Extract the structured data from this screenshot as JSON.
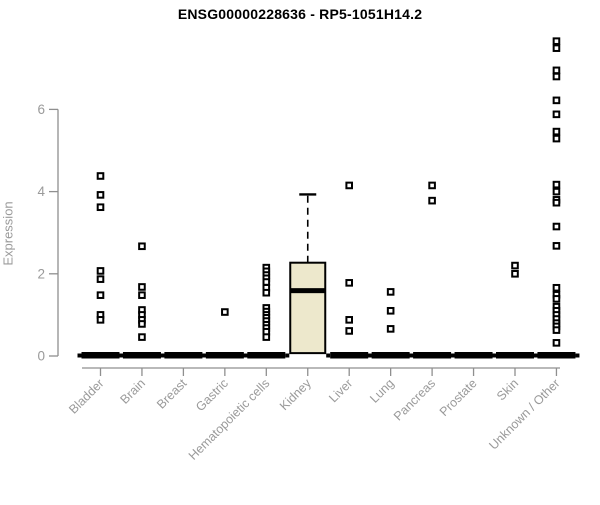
{
  "header": {
    "title": "ENSG00000228636 - RP5-1051H14.2"
  },
  "colors": {
    "axis_line": "#8f8f8f",
    "axis_text": "#9a9a9a",
    "point": "#000000",
    "point_fill": "#ffffff",
    "zero_bar": "#000000",
    "box_fill": "#ede8cc",
    "box_border": "#000000",
    "title_text": "#000000"
  },
  "chart_data": {
    "type": "scatter",
    "title": "ENSG00000228636 - RP5-1051H14.2",
    "xlabel": "",
    "ylabel": "Expression",
    "ylim": [
      0,
      7.7
    ],
    "yticks": [
      0,
      2,
      4,
      6
    ],
    "grid": false,
    "legend": "none",
    "marker": "open-square",
    "categories": [
      {
        "label": "Bladder",
        "zero_bar": true,
        "points": [
          4.38,
          3.92,
          3.62,
          2.07,
          1.87,
          1.48,
          1.0,
          0.88
        ]
      },
      {
        "label": "Brain",
        "zero_bar": true,
        "points": [
          2.67,
          1.68,
          1.48,
          1.12,
          1.0,
          0.88,
          0.78,
          0.46
        ]
      },
      {
        "label": "Breast",
        "zero_bar": true,
        "points": []
      },
      {
        "label": "Gastric",
        "zero_bar": true,
        "points": [
          1.07
        ]
      },
      {
        "label": "Hematopoietic cells",
        "zero_bar": true,
        "points": [
          2.15,
          2.06,
          1.97,
          1.89,
          1.8,
          1.66,
          1.54,
          1.17,
          1.08,
          1.0,
          0.93,
          0.85,
          0.76,
          0.68,
          0.59,
          0.46
        ]
      },
      {
        "label": "Kidney",
        "zero_bar": false,
        "points": [],
        "box": {
          "q1": 0.07,
          "median": 1.59,
          "q3": 2.27,
          "whisker_high": 3.93
        }
      },
      {
        "label": "Liver",
        "zero_bar": true,
        "points": [
          4.15,
          1.78,
          0.88,
          0.61
        ]
      },
      {
        "label": "Lung",
        "zero_bar": true,
        "points": [
          1.56,
          1.1,
          0.66
        ]
      },
      {
        "label": "Pancreas",
        "zero_bar": true,
        "points": [
          4.15,
          3.78
        ]
      },
      {
        "label": "Prostate",
        "zero_bar": true,
        "points": []
      },
      {
        "label": "Skin",
        "zero_bar": true,
        "points": [
          2.2,
          2.0
        ]
      },
      {
        "label": "Unknown / Other",
        "zero_bar": true,
        "points": [
          7.66,
          7.49,
          6.95,
          6.8,
          6.22,
          5.88,
          5.46,
          5.29,
          4.17,
          4.0,
          3.8,
          3.73,
          3.15,
          2.68,
          1.66,
          1.49,
          1.39,
          1.2,
          1.1,
          1.0,
          0.9,
          0.8,
          0.72,
          0.63,
          0.32
        ]
      }
    ]
  }
}
